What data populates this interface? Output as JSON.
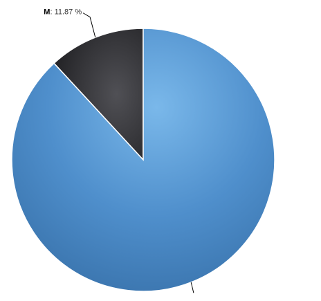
{
  "chart_data": {
    "type": "pie",
    "title": "",
    "slices": [
      {
        "label": "M",
        "value": 11.87,
        "display": "11.87 %",
        "color": "#2b2b2e",
        "show_label": true
      },
      {
        "label": "",
        "value": 88.13,
        "display": "",
        "color": "#4a8bc8",
        "show_label": false
      }
    ],
    "start_angle_deg": 0,
    "direction": "counterclockwise-from-top",
    "legend": "none",
    "colors": {
      "slice_border": "#ffffff",
      "connector": "#000000"
    }
  }
}
